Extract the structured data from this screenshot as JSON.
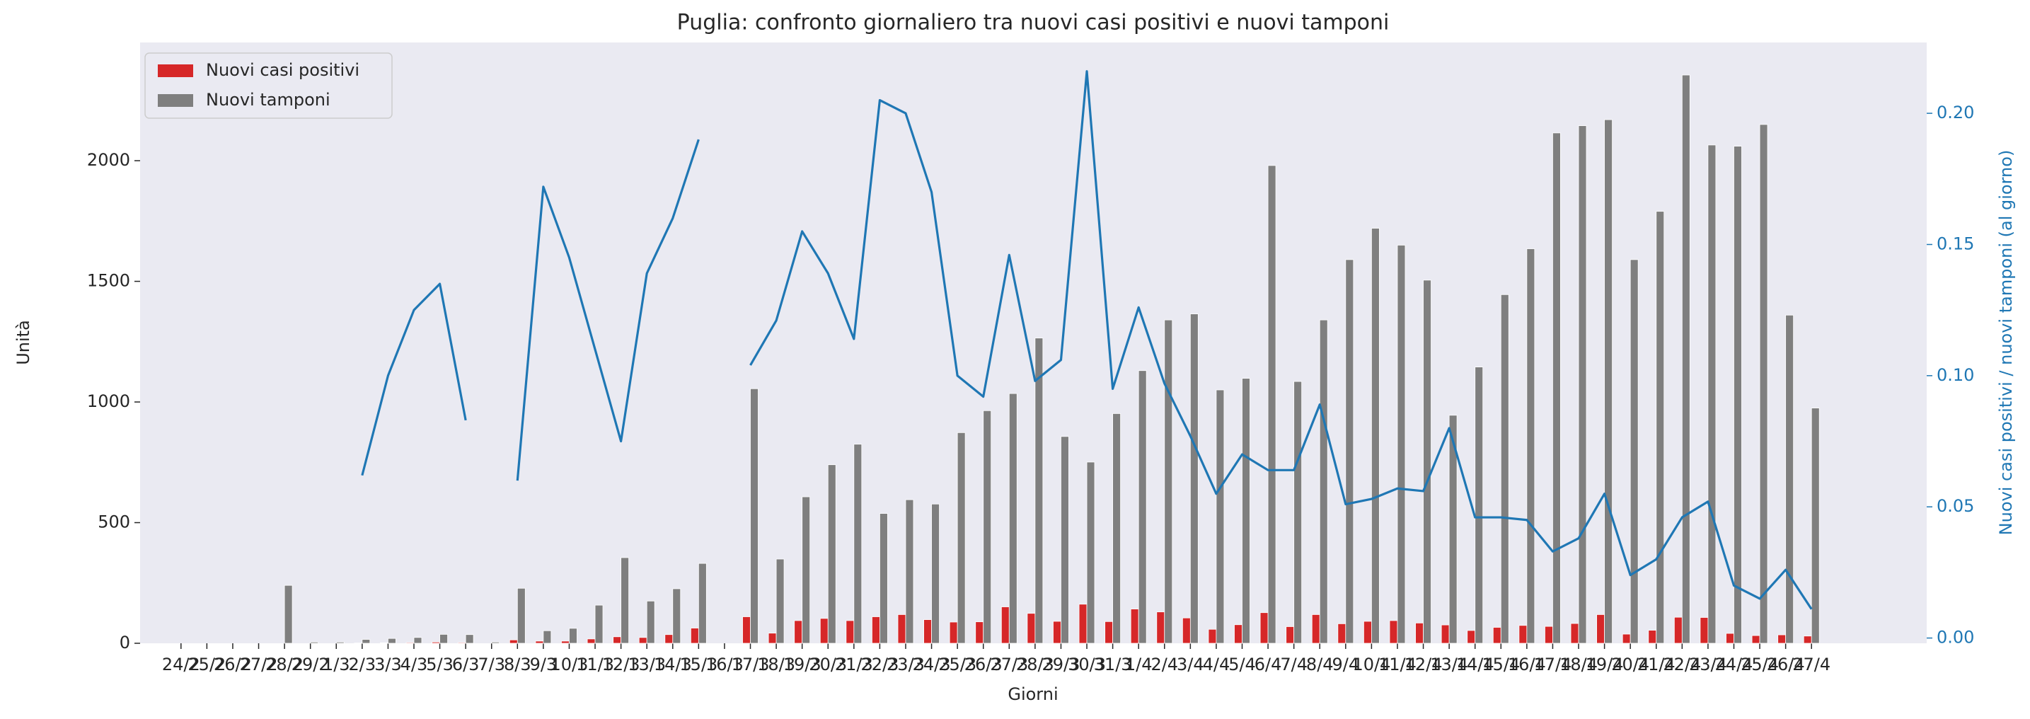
{
  "chart_data": {
    "type": "bar",
    "title": "Puglia: confronto giornaliero tra nuovi casi positivi e nuovi tamponi",
    "x_label": "Giorni",
    "y_label": "Unità",
    "y2_label": "Nuovi casi positivi / nuovi tamponi (al giorno)",
    "categories": [
      "24/2",
      "25/2",
      "26/2",
      "27/2",
      "28/2",
      "29/2",
      "1/3",
      "2/3",
      "3/3",
      "4/3",
      "5/3",
      "6/3",
      "7/3",
      "8/3",
      "9/3",
      "10/3",
      "11/3",
      "12/3",
      "13/3",
      "14/3",
      "15/3",
      "16/3",
      "17/3",
      "18/3",
      "19/3",
      "20/3",
      "21/3",
      "22/3",
      "23/3",
      "24/3",
      "25/3",
      "26/3",
      "27/3",
      "28/3",
      "29/3",
      "30/3",
      "31/3",
      "1/4",
      "2/4",
      "3/4",
      "4/4",
      "5/4",
      "6/4",
      "7/4",
      "8/4",
      "9/4",
      "10/4",
      "11/4",
      "12/4",
      "13/4",
      "14/4",
      "15/4",
      "16/4",
      "17/4",
      "18/4",
      "19/4",
      "20/4",
      "21/4",
      "22/4",
      "23/4",
      "24/4",
      "25/4",
      "26/4",
      "27/4"
    ],
    "series": [
      {
        "name": "Nuovi casi positivi",
        "color": "#d62728",
        "values": [
          0,
          0,
          0,
          0,
          0,
          0,
          0,
          1,
          2,
          3,
          5,
          3,
          0,
          14,
          9,
          9,
          18,
          27,
          24,
          36,
          63,
          0,
          110,
          42,
          94,
          103,
          94,
          110,
          119,
          98,
          88,
          89,
          151,
          124,
          91,
          162,
          90,
          142,
          130,
          105,
          58,
          77,
          127,
          69,
          119,
          81,
          91,
          94,
          84,
          76,
          53,
          66,
          74,
          70,
          82,
          119,
          38,
          54,
          108,
          107,
          41,
          32,
          35,
          30
        ]
      },
      {
        "name": "Nuovi tamponi",
        "color": "#7f7f7f",
        "values": [
          0,
          0,
          0,
          0,
          240,
          5,
          5,
          16,
          20,
          24,
          37,
          36,
          5,
          228,
          52,
          62,
          158,
          355,
          175,
          226,
          331,
          0,
          1055,
          349,
          607,
          740,
          825,
          538,
          595,
          577,
          873,
          964,
          1035,
          1265,
          857,
          751,
          952,
          1130,
          1340,
          1365,
          1050,
          1098,
          1980,
          1085,
          1340,
          1590,
          1720,
          1650,
          1505,
          945,
          1145,
          1445,
          1635,
          2115,
          2145,
          2170,
          1590,
          1790,
          2355,
          2065,
          2060,
          2150,
          1360,
          975
        ]
      },
      {
        "type": "line",
        "axis": "y2",
        "color": "#1f77b4",
        "values": [
          null,
          null,
          null,
          null,
          null,
          null,
          null,
          0.062,
          0.1,
          0.125,
          0.135,
          0.083,
          null,
          0.06,
          0.172,
          0.145,
          0.11,
          0.075,
          0.139,
          0.16,
          0.19,
          null,
          0.104,
          0.121,
          0.155,
          0.139,
          0.114,
          0.205,
          0.2,
          0.17,
          0.1,
          0.092,
          0.146,
          0.098,
          0.106,
          0.216,
          0.095,
          0.126,
          0.097,
          0.077,
          0.055,
          0.07,
          0.064,
          0.064,
          0.089,
          0.051,
          0.053,
          0.057,
          0.056,
          0.08,
          0.046,
          0.046,
          0.045,
          0.033,
          0.038,
          0.055,
          0.024,
          0.03,
          0.046,
          0.052,
          0.02,
          0.015,
          0.026,
          0.011
        ]
      }
    ],
    "ylim": [
      0,
      2490
    ],
    "yticks": [
      0,
      500,
      1000,
      1500,
      2000
    ],
    "y2lim": [
      -0.002,
      0.227
    ],
    "y2ticks": [
      {
        "value": 0,
        "label": "0.00"
      },
      {
        "value": 0.05,
        "label": "0.05"
      },
      {
        "value": 0.1,
        "label": "0.10"
      },
      {
        "value": 0.15,
        "label": "0.15"
      },
      {
        "value": 0.2,
        "label": "0.20"
      }
    ],
    "grid": false,
    "legend": "upper left"
  }
}
